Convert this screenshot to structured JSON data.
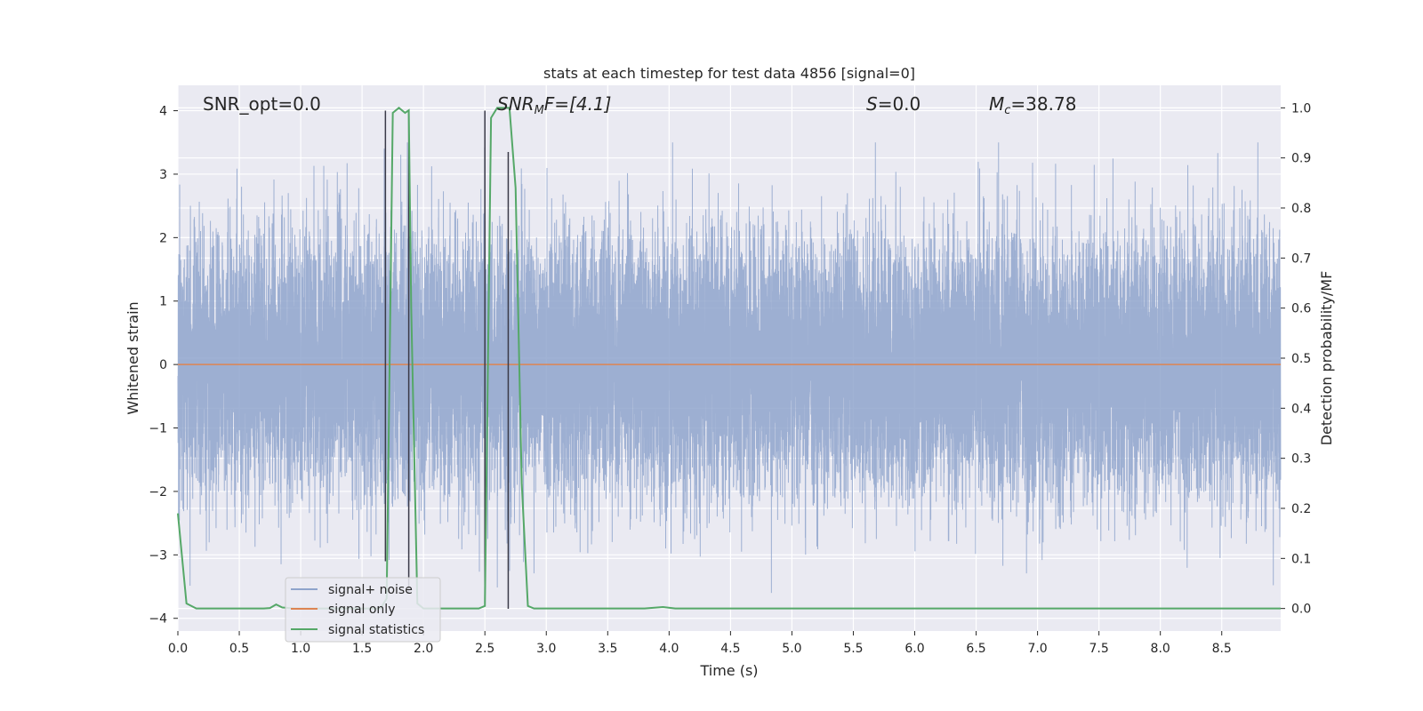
{
  "chart_data": {
    "type": "line",
    "title": "stats at each timestep for test data 4856 [signal=0]",
    "xlabel": "Time (s)",
    "ylabel": "Whitened strain",
    "y2label": "Detection probability/MF",
    "xlim": [
      0.0,
      8.98
    ],
    "ylim": [
      -4.2,
      4.4
    ],
    "y2lim": [
      -0.045,
      1.045
    ],
    "x_ticks": [
      "0.0",
      "0.5",
      "1.0",
      "1.5",
      "2.0",
      "2.5",
      "3.0",
      "3.5",
      "4.0",
      "4.5",
      "5.0",
      "5.5",
      "6.0",
      "6.5",
      "7.0",
      "7.5",
      "8.0",
      "8.5"
    ],
    "y_ticks": [
      "4",
      "3",
      "2",
      "1",
      "0",
      "−1",
      "−2",
      "−3",
      "−4"
    ],
    "y2_ticks": [
      "1.0",
      "0.9",
      "0.8",
      "0.7",
      "0.6",
      "0.5",
      "0.4",
      "0.3",
      "0.2",
      "0.1",
      "0.0"
    ],
    "grid": true,
    "legend_position": "lower-left",
    "annotations": {
      "snr_opt": "SNR_opt=0.0",
      "snr_mf_main": "SNR",
      "snr_mf_sub": "M",
      "snr_mf_rest": "F=[4.1]",
      "s_main": "S",
      "s_rest": "=0.0",
      "mc_main": "M",
      "mc_sub": "c",
      "mc_rest": "=38.78"
    },
    "series": [
      {
        "name": "signal+ noise",
        "color": "#8fa4cc",
        "axis": "left",
        "kind": "noise",
        "sample_rate": 2048,
        "duration": 8.98,
        "amplitude_std": 1.0,
        "peak_range": [
          -3.6,
          3.5
        ]
      },
      {
        "name": "signal only",
        "color": "#dd8452",
        "axis": "left",
        "x": [
          0.0,
          8.98
        ],
        "y": [
          0.0,
          0.0
        ]
      },
      {
        "name": "signal statistics",
        "color": "#55a868",
        "axis": "right",
        "x": [
          0.0,
          0.07,
          0.15,
          0.3,
          0.5,
          0.7,
          0.75,
          0.8,
          0.85,
          0.95,
          1.1,
          1.3,
          1.5,
          1.65,
          1.7,
          1.75,
          1.8,
          1.85,
          1.88,
          1.9,
          1.95,
          2.0,
          2.1,
          2.3,
          2.45,
          2.5,
          2.55,
          2.6,
          2.65,
          2.7,
          2.75,
          2.8,
          2.85,
          2.9,
          3.1,
          3.5,
          3.8,
          3.95,
          4.05,
          4.5,
          5.0,
          6.0,
          7.0,
          8.0,
          8.98
        ],
        "y": [
          0.19,
          0.01,
          0.0,
          0.0,
          0.0,
          0.0,
          0.001,
          0.008,
          0.002,
          0.0,
          0.0,
          0.0,
          0.0,
          0.0,
          0.02,
          0.99,
          1.0,
          0.99,
          0.995,
          0.6,
          0.01,
          0.0,
          0.0,
          0.0,
          0.0,
          0.005,
          0.98,
          1.0,
          1.0,
          1.0,
          0.84,
          0.25,
          0.005,
          0.0,
          0.0,
          0.0,
          0.0,
          0.003,
          0.0,
          0.0,
          0.0,
          0.0,
          0.0,
          0.0,
          0.0
        ]
      }
    ],
    "vertical_markers": [
      {
        "x": 1.69,
        "y": [
          -3.1,
          4.0
        ],
        "color": "#3a3a48"
      },
      {
        "x": 1.88,
        "y": [
          -3.6,
          4.0
        ],
        "color": "#3a3a48"
      },
      {
        "x": 2.5,
        "y": [
          -3.75,
          4.0
        ],
        "color": "#3a3a48"
      },
      {
        "x": 2.69,
        "y": [
          -3.85,
          3.35
        ],
        "color": "#3a3a48"
      }
    ]
  }
}
